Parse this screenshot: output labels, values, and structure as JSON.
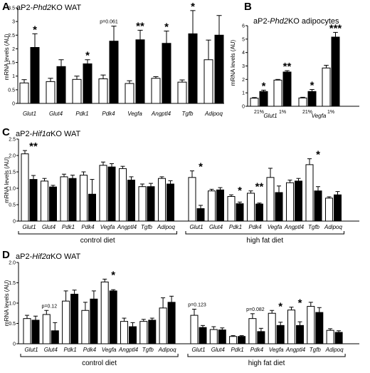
{
  "chart_data": [
    {
      "panel": "A",
      "title_prefix": "aP2-",
      "title_gene": "Phd2",
      "title_suffix": "KO WAT",
      "type": "bar",
      "ylabel": "mRNA levels (AU)",
      "ylim": [
        0,
        3.5
      ],
      "yticks": [
        "0",
        "0.5",
        "1",
        "1.5",
        "2",
        "2.5",
        "3",
        "3.5"
      ],
      "categories": [
        "Glut1",
        "Glut4",
        "Pdk1",
        "Pdk4",
        "Vegfa",
        "Angptl4",
        "Tgfb",
        "Adipoq"
      ],
      "series": [
        {
          "color": "#ffffff",
          "values": [
            0.75,
            0.8,
            0.88,
            0.9,
            0.73,
            0.92,
            0.78,
            1.6
          ],
          "errors": [
            0.12,
            0.12,
            0.12,
            0.14,
            0.1,
            0.06,
            0.08,
            0.72
          ]
        },
        {
          "color": "#000000",
          "values": [
            2.05,
            1.35,
            1.45,
            2.28,
            2.33,
            2.2,
            2.55,
            2.5
          ],
          "errors": [
            0.5,
            0.25,
            0.15,
            0.55,
            0.35,
            0.45,
            0.85,
            0.72
          ]
        }
      ],
      "annotations": [
        "*",
        "",
        "*",
        "p=0.061",
        "**",
        "*",
        "*",
        ""
      ]
    },
    {
      "panel": "B",
      "title_prefix": "aP2-",
      "title_gene": "Phd2",
      "title_suffix": "KO adipocytes",
      "type": "bar",
      "ylabel": "mRNA levels (AU)",
      "ylim": [
        0,
        6
      ],
      "yticks": [
        "0",
        "1",
        "2",
        "3",
        "4",
        "5",
        "6"
      ],
      "conditions": [
        "21%",
        "1%",
        "21%",
        "1%"
      ],
      "genes": [
        "Glut1",
        "Vegfa"
      ],
      "series": [
        {
          "color": "#ffffff",
          "values": [
            0.6,
            1.95,
            0.62,
            2.85
          ],
          "errors": [
            0.05,
            0.05,
            0.05,
            0.2
          ]
        },
        {
          "color": "#000000",
          "values": [
            1.1,
            2.55,
            1.1,
            5.15
          ],
          "errors": [
            0.1,
            0.1,
            0.15,
            0.35
          ]
        }
      ],
      "annotations": [
        "*",
        "**",
        "*",
        "***"
      ]
    },
    {
      "panel": "C",
      "title_prefix": "aP2-",
      "title_gene": "Hif1α",
      "title_suffix": "KO WAT",
      "type": "bar",
      "ylabel": "mRNA levels (AU)",
      "ylim": [
        0,
        2.5
      ],
      "yticks": [
        "0",
        "0.5",
        "1.0",
        "1.5",
        "2.0",
        "2.5"
      ],
      "groups": [
        {
          "label": "control diet",
          "categories": [
            "Glut1",
            "Glut4",
            "Pdk1",
            "Pdk4",
            "Vegfa",
            "Angptl4",
            "Tgfb",
            "Adipoq"
          ],
          "series": [
            {
              "color": "#ffffff",
              "values": [
                2.05,
                1.22,
                1.35,
                1.4,
                1.7,
                1.6,
                1.05,
                1.3
              ],
              "errors": [
                0.1,
                0.08,
                0.08,
                0.1,
                0.1,
                0.07,
                0.08,
                0.05
              ]
            },
            {
              "color": "#000000",
              "values": [
                1.27,
                1.04,
                1.3,
                0.82,
                1.65,
                1.25,
                1.05,
                1.13
              ],
              "errors": [
                0.12,
                0.05,
                0.1,
                0.45,
                0.1,
                0.1,
                0.1,
                0.1
              ]
            }
          ],
          "annotations": [
            "**",
            "",
            "",
            "",
            "",
            "",
            "",
            ""
          ]
        },
        {
          "label": "high fat diet",
          "categories": [
            "Glut1",
            "Glut4",
            "Pdk1",
            "Pdk4",
            "Vegfa",
            "Angptl4",
            "Tgfb",
            "Adipoq"
          ],
          "series": [
            {
              "color": "#ffffff",
              "values": [
                1.33,
                0.92,
                0.75,
                0.85,
                1.33,
                1.17,
                1.72,
                0.7
              ],
              "errors": [
                0.2,
                0.05,
                0.05,
                0.07,
                0.28,
                0.08,
                0.18,
                0.04
              ]
            },
            {
              "color": "#000000",
              "values": [
                0.38,
                0.95,
                0.53,
                0.52,
                0.87,
                1.22,
                0.92,
                0.8
              ],
              "errors": [
                0.1,
                0.07,
                0.05,
                0.03,
                0.2,
                0.08,
                0.13,
                0.1
              ]
            }
          ],
          "annotations": [
            "*",
            "",
            "*",
            "**",
            "",
            "",
            "*",
            ""
          ]
        }
      ]
    },
    {
      "panel": "D",
      "title_prefix": "aP2-",
      "title_gene": "Hif2α",
      "title_suffix": "KO WAT",
      "type": "bar",
      "ylabel": "mRNA levels (AU)",
      "ylim": [
        0,
        2.0
      ],
      "yticks": [
        "0",
        "0.5",
        "1.0",
        "1.5",
        "2.0"
      ],
      "groups": [
        {
          "label": "control diet",
          "categories": [
            "Glut1",
            "Glut4",
            "Pdk1",
            "Pdk4",
            "Vegfa",
            "Angptl4",
            "Tgfb",
            "Adipoq"
          ],
          "series": [
            {
              "color": "#ffffff",
              "values": [
                0.62,
                0.72,
                1.05,
                0.82,
                1.52,
                0.55,
                0.55,
                0.88
              ],
              "errors": [
                0.08,
                0.1,
                0.25,
                0.2,
                0.07,
                0.08,
                0.05,
                0.25
              ]
            },
            {
              "color": "#000000",
              "values": [
                0.58,
                0.32,
                1.22,
                1.1,
                1.3,
                0.42,
                0.58,
                1.02
              ],
              "errors": [
                0.1,
                0.2,
                0.1,
                0.2,
                0.03,
                0.1,
                0.05,
                0.15
              ]
            }
          ],
          "annotations": [
            "",
            "p=0.12",
            "",
            "",
            "*",
            "",
            "",
            ""
          ]
        },
        {
          "label": "high fat diet",
          "categories": [
            "Glut1",
            "Glut4",
            "Pdk1",
            "Pdk4",
            "Vegfa",
            "Angptl4",
            "Tgfb",
            "Adipoq"
          ],
          "series": [
            {
              "color": "#ffffff",
              "values": [
                0.7,
                0.35,
                0.18,
                0.62,
                0.75,
                0.83,
                0.92,
                0.33
              ],
              "errors": [
                0.15,
                0.07,
                0.02,
                0.12,
                0.07,
                0.07,
                0.1,
                0.04
              ]
            },
            {
              "color": "#000000",
              "values": [
                0.4,
                0.34,
                0.18,
                0.3,
                0.45,
                0.45,
                0.77,
                0.28
              ],
              "errors": [
                0.05,
                0.05,
                0.02,
                0.08,
                0.08,
                0.09,
                0.12,
                0.04
              ]
            }
          ],
          "annotations": [
            "p=0.123",
            "",
            "",
            "p=0.082",
            "*",
            "*",
            "",
            ""
          ]
        }
      ]
    }
  ]
}
